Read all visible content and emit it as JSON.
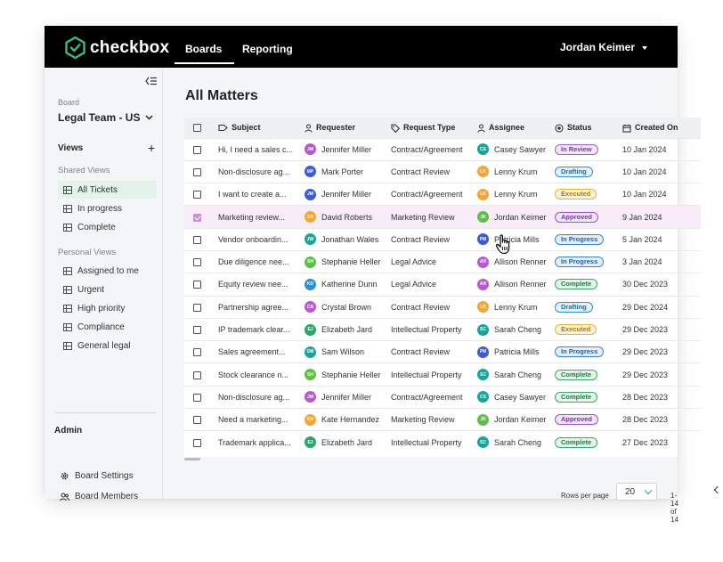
{
  "app": {
    "name": "checkbox"
  },
  "nav": {
    "tabs": [
      {
        "label": "Boards",
        "active": true
      },
      {
        "label": "Reporting",
        "active": false
      }
    ]
  },
  "user": {
    "name": "Jordan Keimer"
  },
  "sidebar": {
    "board_label": "Board",
    "board_name": "Legal Team - US",
    "views_title": "Views",
    "shared_title": "Shared Views",
    "shared": [
      {
        "label": "All Tickets",
        "active": true
      },
      {
        "label": "In progress"
      },
      {
        "label": "Complete"
      }
    ],
    "personal_title": "Personal Views",
    "personal": [
      {
        "label": "Assigned to me"
      },
      {
        "label": "Urgent"
      },
      {
        "label": "High priority"
      },
      {
        "label": "Compliance"
      },
      {
        "label": "General legal"
      }
    ],
    "admin_title": "Admin",
    "admin": [
      {
        "label": "Board Settings",
        "icon": "gear-icon"
      },
      {
        "label": "Board Members",
        "icon": "users-icon"
      }
    ]
  },
  "main": {
    "title": "All Matters",
    "columns": {
      "subject": "Subject",
      "requester": "Requester",
      "request_type": "Request Type",
      "assignee": "Assignee",
      "status": "Status",
      "created_on": "Created On"
    },
    "rows": [
      {
        "subject": "Hi, I need a sales c...",
        "requester": "Jennifer Miller",
        "req_initials": "JM",
        "req_color": "#b65ad0",
        "type": "Contract/Agreement",
        "assignee": "Casey Sawyer",
        "asg_initials": "CS",
        "asg_color": "#1aa59a",
        "status": "In Review",
        "created": "10 Jan 2024",
        "checked": false
      },
      {
        "subject": "Non-disclosure ag...",
        "requester": "Mark Porter",
        "req_initials": "MP",
        "req_color": "#3d5bd9",
        "type": "Contract Review",
        "assignee": "Lenny Krum",
        "asg_initials": "LK",
        "asg_color": "#f2a63a",
        "status": "Drafting",
        "created": "10 Jan 2024",
        "checked": false
      },
      {
        "subject": "I want to create a...",
        "requester": "Jennifer Miller",
        "req_initials": "JM",
        "req_color": "#3d5bd9",
        "type": "Contract/Agreement",
        "assignee": "Lenny Krum",
        "asg_initials": "LK",
        "asg_color": "#f2a63a",
        "status": "Executed",
        "created": "10 Jan 2024",
        "checked": false
      },
      {
        "subject": "Marketing review...",
        "requester": "David Roberts",
        "req_initials": "DR",
        "req_color": "#f2a63a",
        "type": "Marketing Review",
        "assignee": "Jordan Keimer",
        "asg_initials": "JK",
        "asg_color": "#5cbf4a",
        "status": "Approved",
        "created": "9 Jan 2024",
        "checked": true
      },
      {
        "subject": "Vendor onboardin...",
        "requester": "Jonathan Wales",
        "req_initials": "JW",
        "req_color": "#1aa59a",
        "type": "Contract Review",
        "assignee": "Patricia Mills",
        "asg_initials": "PM",
        "asg_color": "#3d5bd9",
        "status": "In Progress",
        "created": "5 Jan 2024",
        "checked": false
      },
      {
        "subject": "Due diligence nee...",
        "requester": "Stephanie Heller",
        "req_initials": "SH",
        "req_color": "#5cbf4a",
        "type": "Legal Advice",
        "assignee": "Allison Renner",
        "asg_initials": "AR",
        "asg_color": "#b65ad0",
        "status": "In Progress",
        "created": "3 Jan 2024",
        "checked": false
      },
      {
        "subject": "Equity review nee...",
        "requester": "Katherine Dunn",
        "req_initials": "KD",
        "req_color": "#2f8fd6",
        "type": "Legal Advice",
        "assignee": "Allison Renner",
        "asg_initials": "AR",
        "asg_color": "#b65ad0",
        "status": "Complete",
        "created": "30 Dec 2023",
        "checked": false
      },
      {
        "subject": "Partnership agree...",
        "requester": "Crystal Brown",
        "req_initials": "CB",
        "req_color": "#b65ad0",
        "type": "Contract Review",
        "assignee": "Lenny Krum",
        "asg_initials": "LK",
        "asg_color": "#f2a63a",
        "status": "Drafting",
        "created": "29 Dec 2024",
        "checked": false
      },
      {
        "subject": "IP trademark clear...",
        "requester": "Elizabeth Jard",
        "req_initials": "EJ",
        "req_color": "#2aa86b",
        "type": "Intellectual Property",
        "assignee": "Sarah Cheng",
        "asg_initials": "SC",
        "asg_color": "#1aa59a",
        "status": "Executed",
        "created": "29 Dec 2023",
        "checked": false
      },
      {
        "subject": "Sales agreement...",
        "requester": "Sam Wilson",
        "req_initials": "SW",
        "req_color": "#1aa59a",
        "type": "Contract Review",
        "assignee": "Patricia Mills",
        "asg_initials": "PM",
        "asg_color": "#3d5bd9",
        "status": "In Progress",
        "created": "29 Dec 2023",
        "checked": false
      },
      {
        "subject": "Stock clearance n...",
        "requester": "Stephanie Heller",
        "req_initials": "SH",
        "req_color": "#5cbf4a",
        "type": "Intellectual Property",
        "assignee": "Sarah Cheng",
        "asg_initials": "SC",
        "asg_color": "#1aa59a",
        "status": "Complete",
        "created": "29 Dec 2023",
        "checked": false
      },
      {
        "subject": "Non-disclosure ag...",
        "requester": "Jennifer Miller",
        "req_initials": "JM",
        "req_color": "#b65ad0",
        "type": "Contract/Agreement",
        "assignee": "Casey Sawyer",
        "asg_initials": "CS",
        "asg_color": "#1aa59a",
        "status": "Complete",
        "created": "28 Dec 2023",
        "checked": false
      },
      {
        "subject": "Need a marketing...",
        "requester": "Kate Hernandez",
        "req_initials": "KH",
        "req_color": "#f2a63a",
        "type": "Marketing Review",
        "assignee": "Jordan Keimer",
        "asg_initials": "JK",
        "asg_color": "#5cbf4a",
        "status": "Approved",
        "created": "28 Dec 2023",
        "checked": false
      },
      {
        "subject": "Trademark applica...",
        "requester": "Elizabeth Jard",
        "req_initials": "EJ",
        "req_color": "#2aa86b",
        "type": "Intellectual Property",
        "assignee": "Sarah Cheng",
        "asg_initials": "SC",
        "asg_color": "#1aa59a",
        "status": "Complete",
        "created": "27 Dec 2023",
        "checked": false
      }
    ],
    "status_colors": {
      "In Review": {
        "bg": "#f3e8fb",
        "border": "#a35bd1",
        "text": "#7b2fb0"
      },
      "Drafting": {
        "bg": "#e4f1fb",
        "border": "#2f8fd6",
        "text": "#1c6aa8"
      },
      "Executed": {
        "bg": "#fdf3d4",
        "border": "#e8b52e",
        "text": "#b07a08"
      },
      "Approved": {
        "bg": "#f0e6fb",
        "border": "#9b4fd4",
        "text": "#7b2fb0"
      },
      "In Progress": {
        "bg": "#e3effc",
        "border": "#3b82d8",
        "text": "#1f5fae"
      },
      "Complete": {
        "bg": "#e4f5ea",
        "border": "#3aa869",
        "text": "#1f7a45"
      }
    }
  },
  "pagination": {
    "rows_label": "Rows per page",
    "rows_value": "20",
    "range": "1-14 of 14"
  }
}
